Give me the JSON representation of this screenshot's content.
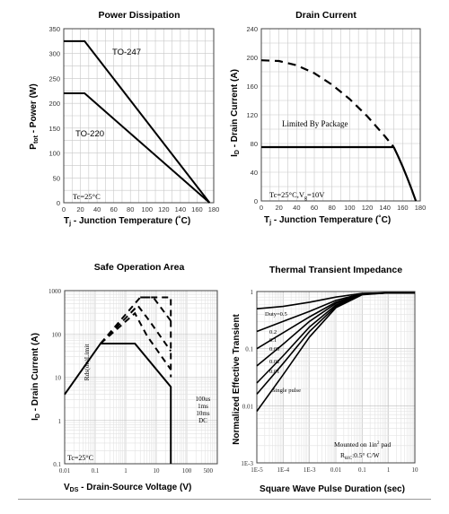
{
  "chart_data": [
    {
      "type": "line",
      "title": "Power Dissipation",
      "xlabel_main": "T",
      "xlabel_sub": "j",
      "xlabel_rest": " - Junction Temperature (˚C)",
      "ylabel_main": "P",
      "ylabel_sub": "tot",
      "ylabel_rest": " - Power (W)",
      "xlim": [
        0,
        180
      ],
      "ylim": [
        0,
        350
      ],
      "xticks": [
        "0",
        "20",
        "40",
        "60",
        "80",
        "100",
        "120",
        "140",
        "160",
        "180"
      ],
      "yticks": [
        "0",
        "50",
        "100",
        "150",
        "200",
        "250",
        "300",
        "350"
      ],
      "grid": true,
      "annotation": "Tc=25°C",
      "series": [
        {
          "name": "TO-247",
          "x": [
            0,
            25,
            175
          ],
          "y": [
            325,
            325,
            0
          ]
        },
        {
          "name": "TO-220",
          "x": [
            0,
            25,
            175
          ],
          "y": [
            220,
            220,
            0
          ]
        }
      ]
    },
    {
      "type": "line",
      "title": "Drain Current",
      "xlabel_main": "T",
      "xlabel_sub": "j",
      "xlabel_rest": " - Junction Temperature (˚C)",
      "ylabel_main": "I",
      "ylabel_sub": "D",
      "ylabel_rest": " - Drain Current (A)",
      "xlim": [
        0,
        180
      ],
      "ylim": [
        0,
        240
      ],
      "xticks": [
        "0",
        "20",
        "40",
        "60",
        "80",
        "100",
        "120",
        "140",
        "160",
        "180"
      ],
      "yticks": [
        "0",
        "40",
        "80",
        "120",
        "160",
        "200",
        "240"
      ],
      "grid": true,
      "annotation": "Tc=25°C,V",
      "annotation_sub": "g",
      "annotation_rest": "=10V",
      "label_package": "Limited By Package",
      "series": [
        {
          "style": "dashed",
          "x": [
            0,
            20,
            40,
            60,
            80,
            100,
            120,
            140,
            150
          ],
          "y": [
            196,
            195,
            189,
            178,
            162,
            142,
            118,
            90,
            75
          ]
        },
        {
          "style": "solid",
          "x": [
            0,
            150
          ],
          "y": [
            75,
            75
          ]
        },
        {
          "style": "solid",
          "x": [
            150,
            155,
            160,
            165,
            170,
            175
          ],
          "y": [
            75,
            62,
            48,
            33,
            17,
            0
          ]
        }
      ]
    },
    {
      "type": "line",
      "title": "Safe Operation Area",
      "xlabel_main": "V",
      "xlabel_sub": "DS",
      "xlabel_rest": " - Drain-Source Voltage (V)",
      "ylabel_main": "I",
      "ylabel_sub": "D",
      "ylabel_rest": " - Drain Current (A)",
      "xscale": "log",
      "yscale": "log",
      "xlim": [
        0.01,
        1000
      ],
      "ylim": [
        0.1,
        1000
      ],
      "xticks": [
        "0.01",
        "0.1",
        "1",
        "10",
        "100",
        "500"
      ],
      "yticks": [
        "0.1",
        "1",
        "10",
        "100",
        "1000"
      ],
      "grid": true,
      "annotation": "Tc=25°C",
      "limit_label": "Rds(on)Limit",
      "pulse_labels": [
        "100us",
        "1ms",
        "10ms",
        "DC"
      ],
      "series": [
        {
          "style": "solid",
          "x": [
            0.01,
            0.15,
            2,
            30,
            30
          ],
          "y": [
            4,
            60,
            60,
            6,
            0.1
          ]
        },
        {
          "style": "dashed",
          "x": [
            0.15,
            2,
            5,
            30
          ],
          "y": [
            60,
            300,
            90,
            15
          ]
        },
        {
          "style": "dashed",
          "x": [
            0.15,
            2.5,
            6,
            30
          ],
          "y": [
            60,
            450,
            200,
            40
          ]
        },
        {
          "style": "dashed",
          "x": [
            0.15,
            3,
            8,
            30
          ],
          "y": [
            60,
            700,
            700,
            200
          ]
        },
        {
          "style": "dashed",
          "x": [
            3,
            30,
            30
          ],
          "y": [
            700,
            700,
            10
          ]
        }
      ]
    },
    {
      "type": "line",
      "title": "Thermal Transient Impedance",
      "xlabel": "Square Wave Pulse Duration (sec)",
      "ylabel": "Normalized Effective Transient",
      "xscale": "log",
      "yscale": "log",
      "xlim": [
        1e-05,
        10
      ],
      "ylim": [
        0.001,
        1
      ],
      "xticks": [
        "1E-5",
        "1E-4",
        "1E-3",
        "0.01",
        "0.1",
        "1",
        "10"
      ],
      "yticks": [
        "1E-3",
        "0.01",
        "0.1",
        "1"
      ],
      "grid": true,
      "annotation_line1": "Mounted on 1in",
      "annotation_line1_sup": "2",
      "annotation_line1_rest": " pad",
      "annotation_line2": "R",
      "annotation_line2_sub": "θJC",
      "annotation_line2_rest": ":0.5° C/W",
      "series": [
        {
          "name": "Duty=0.5",
          "x": [
            1e-05,
            0.0001,
            0.001,
            0.01,
            0.1,
            1,
            10
          ],
          "y": [
            0.5,
            0.55,
            0.65,
            0.8,
            0.93,
            0.95,
            0.95
          ]
        },
        {
          "name": "0.2",
          "x": [
            1e-05,
            0.0001,
            0.001,
            0.01,
            0.1,
            1,
            10
          ],
          "y": [
            0.2,
            0.3,
            0.45,
            0.7,
            0.92,
            0.95,
            0.95
          ]
        },
        {
          "name": "0.1",
          "x": [
            1e-05,
            0.0001,
            0.001,
            0.01,
            0.1,
            1,
            10
          ],
          "y": [
            0.1,
            0.19,
            0.36,
            0.65,
            0.91,
            0.95,
            0.95
          ]
        },
        {
          "name": "0.05",
          "x": [
            1e-05,
            0.0001,
            0.001,
            0.01,
            0.1,
            1,
            10
          ],
          "y": [
            0.05,
            0.12,
            0.3,
            0.62,
            0.9,
            0.95,
            0.95
          ]
        },
        {
          "name": "0.02",
          "x": [
            1e-05,
            0.0001,
            0.001,
            0.01,
            0.1,
            1,
            10
          ],
          "y": [
            0.025,
            0.075,
            0.24,
            0.58,
            0.9,
            0.95,
            0.95
          ]
        },
        {
          "name": "0.01",
          "x": [
            1e-05,
            0.0001,
            0.001,
            0.01,
            0.1,
            1,
            10
          ],
          "y": [
            0.016,
            0.055,
            0.2,
            0.55,
            0.89,
            0.95,
            0.95
          ]
        },
        {
          "name": "Single pulse",
          "x": [
            1e-05,
            0.0001,
            0.001,
            0.01,
            0.1,
            1,
            10
          ],
          "y": [
            0.008,
            0.035,
            0.16,
            0.52,
            0.88,
            0.95,
            0.95
          ]
        }
      ]
    }
  ]
}
